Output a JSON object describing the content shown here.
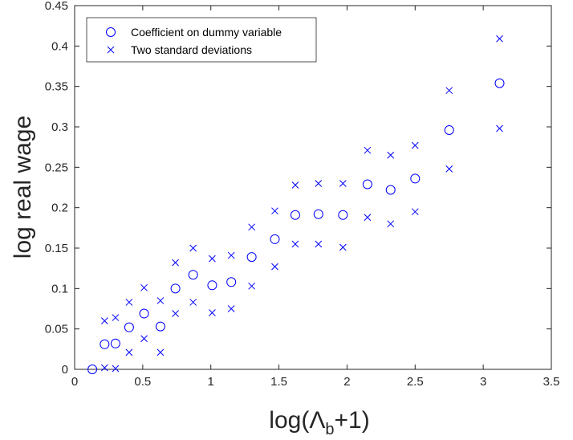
{
  "chart_data": {
    "type": "scatter",
    "xlabel": {
      "main": "log(Λ",
      "sub": "b",
      "tail": "+1)"
    },
    "ylabel": "log real wage",
    "xlim": [
      0,
      3.5
    ],
    "ylim": [
      0,
      0.45
    ],
    "xticks": [
      "0",
      "0.5",
      "1",
      "1.5",
      "2",
      "2.5",
      "3",
      "3.5"
    ],
    "yticks": [
      "0",
      "0.05",
      "0.1",
      "0.15",
      "0.2",
      "0.25",
      "0.3",
      "0.35",
      "0.4",
      "0.45"
    ],
    "grid": false,
    "legend_position": "top-left",
    "colors": {
      "series": "#0000ff",
      "axis": "#262626",
      "legend_border": "#262626"
    },
    "series": [
      {
        "name": "Coefficient on dummy variable",
        "marker": "circle",
        "x": [
          0.13,
          0.22,
          0.3,
          0.4,
          0.51,
          0.63,
          0.74,
          0.87,
          1.01,
          1.15,
          1.3,
          1.47,
          1.62,
          1.79,
          1.97,
          2.15,
          2.32,
          2.5,
          2.75,
          3.12
        ],
        "y": [
          0.0,
          0.031,
          0.032,
          0.052,
          0.069,
          0.053,
          0.1,
          0.117,
          0.104,
          0.108,
          0.139,
          0.161,
          0.191,
          0.192,
          0.191,
          0.229,
          0.222,
          0.236,
          0.296,
          0.354
        ]
      },
      {
        "name": "Two standard deviations",
        "marker": "x",
        "x": [
          0.22,
          0.3,
          0.4,
          0.51,
          0.63,
          0.74,
          0.87,
          1.01,
          1.15,
          1.3,
          1.47,
          1.62,
          1.79,
          1.97,
          2.15,
          2.32,
          2.5,
          2.75,
          3.12,
          0.22,
          0.3,
          0.4,
          0.51,
          0.63,
          0.74,
          0.87,
          1.01,
          1.15,
          1.3,
          1.47,
          1.62,
          1.79,
          1.97,
          2.15,
          2.32,
          2.5,
          2.75,
          3.12
        ],
        "y": [
          0.06,
          0.064,
          0.083,
          0.101,
          0.085,
          0.132,
          0.15,
          0.137,
          0.141,
          0.176,
          0.196,
          0.228,
          0.23,
          0.23,
          0.271,
          0.265,
          0.277,
          0.345,
          0.409,
          0.002,
          0.001,
          0.021,
          0.038,
          0.021,
          0.069,
          0.083,
          0.07,
          0.075,
          0.103,
          0.127,
          0.155,
          0.155,
          0.151,
          0.188,
          0.18,
          0.195,
          0.248,
          0.298
        ]
      }
    ]
  }
}
